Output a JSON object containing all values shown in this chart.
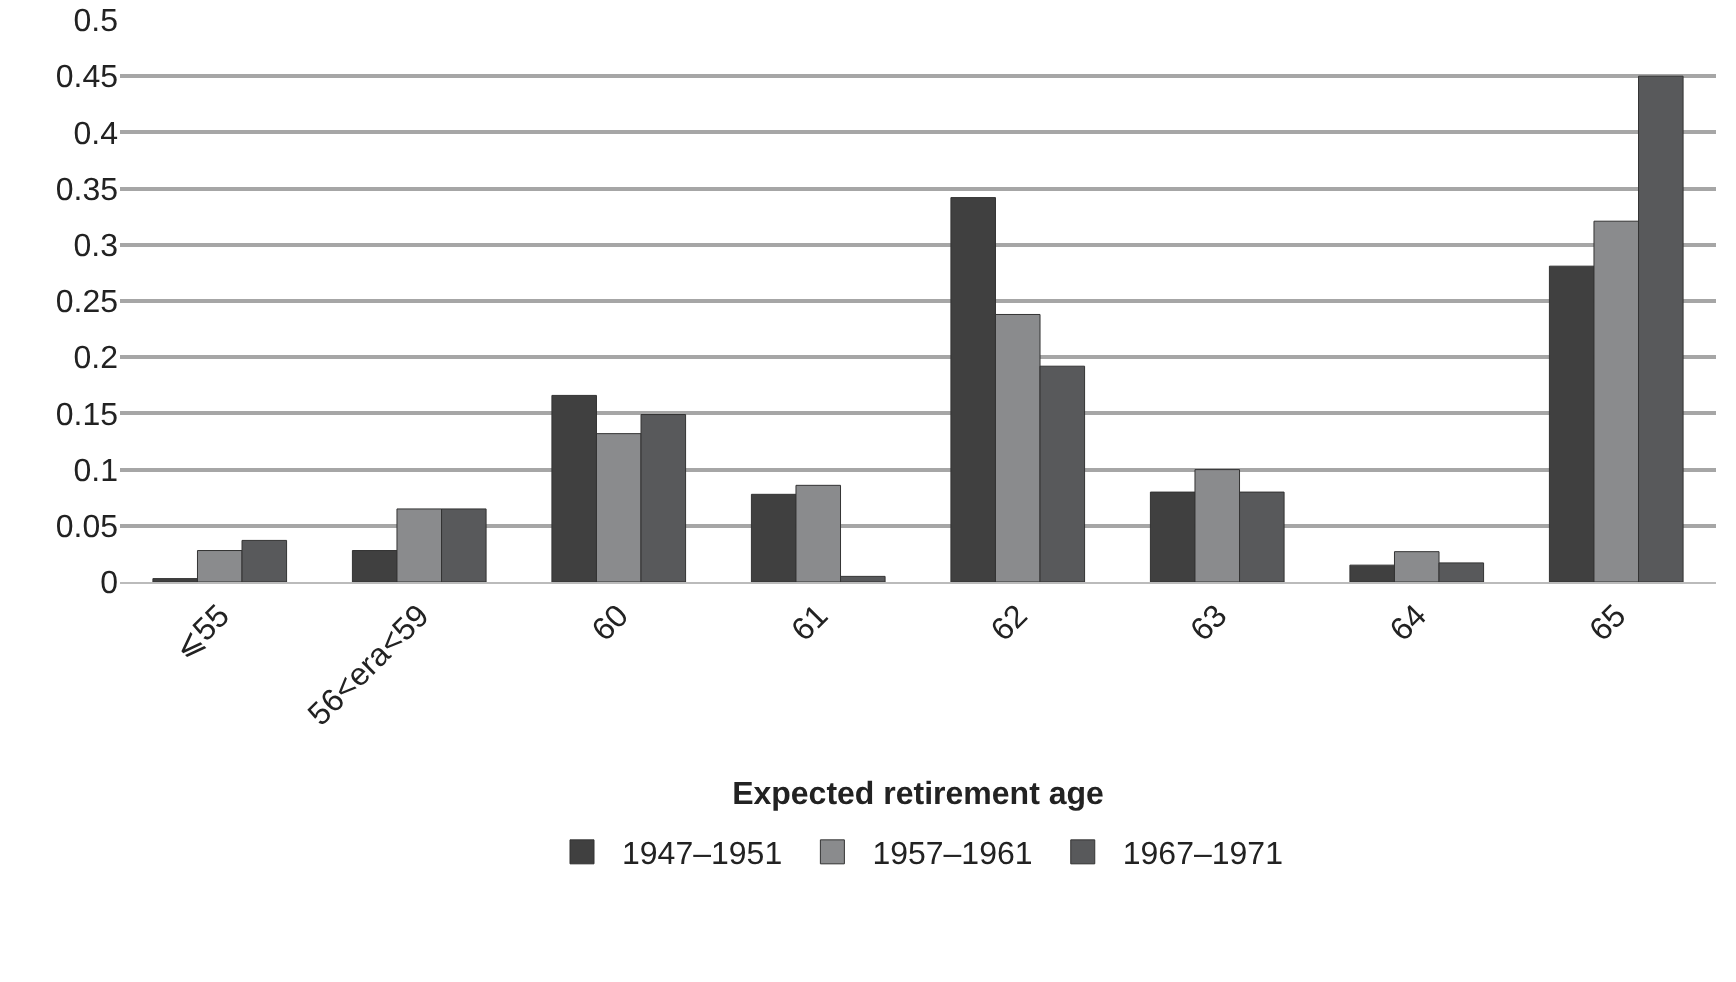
{
  "chart_data": {
    "type": "bar",
    "xlabel": "Expected retirement age",
    "categories": [
      "⩽55",
      "56<era<59",
      "60",
      "61",
      "62",
      "63",
      "64",
      "65"
    ],
    "series": [
      {
        "name": "1947–1951",
        "color": "#404040",
        "values": [
          0.003,
          0.028,
          0.166,
          0.078,
          0.342,
          0.08,
          0.015,
          0.281
        ]
      },
      {
        "name": "1957–1961",
        "color": "#8a8b8d",
        "values": [
          0.028,
          0.065,
          0.132,
          0.086,
          0.238,
          0.1,
          0.027,
          0.321
        ]
      },
      {
        "name": "1967–1971",
        "color": "#58595b",
        "values": [
          0.037,
          0.065,
          0.149,
          0.005,
          0.192,
          0.08,
          0.017,
          0.45
        ]
      }
    ],
    "ylim": [
      0,
      0.5
    ],
    "yticks": [
      0,
      0.05,
      0.1,
      0.15,
      0.2,
      0.25,
      0.3,
      0.35,
      0.4,
      0.45,
      0.5
    ],
    "grid": "y",
    "legend": "bottom"
  }
}
